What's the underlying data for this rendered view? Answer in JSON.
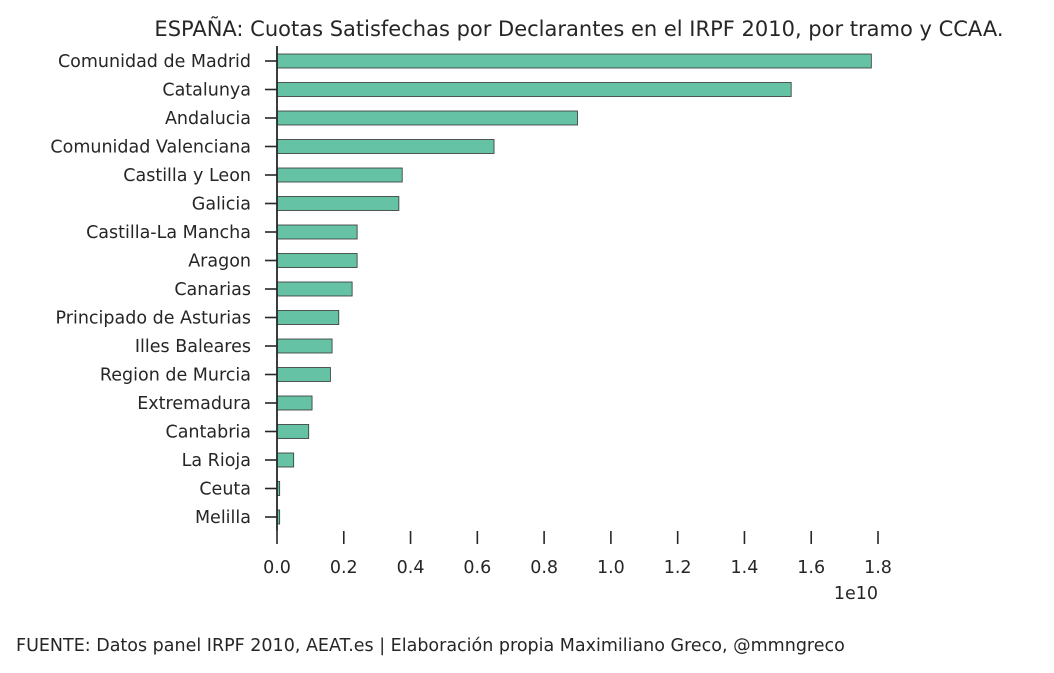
{
  "chart_data": {
    "type": "bar",
    "orientation": "horizontal",
    "title": "ESPAÑA: Cuotas Satisfechas por Declarantes en el IRPF 2010, por tramo y CCAA.",
    "xlabel": "",
    "ylabel": "",
    "x_scale_label": "1e10",
    "xlim": [
      0,
      1.8
    ],
    "x_ticks": [
      "0.0",
      "0.2",
      "0.4",
      "0.6",
      "0.8",
      "1.0",
      "1.2",
      "1.4",
      "1.6",
      "1.8"
    ],
    "x_tick_values": [
      0.0,
      0.2,
      0.4,
      0.6,
      0.8,
      1.0,
      1.2,
      1.4,
      1.6,
      1.8
    ],
    "grid": false,
    "bar_color": "#66c2a5",
    "bar_edge_color": "#333333",
    "categories": [
      "Comunidad de Madrid",
      "Catalunya",
      "Andalucia",
      "Comunidad Valenciana",
      "Castilla y Leon",
      "Galicia",
      "Castilla-La Mancha",
      "Aragon",
      "Canarias",
      "Principado de Asturias",
      "Illes Baleares",
      "Region de Murcia",
      "Extremadura",
      "Cantabria",
      "La Rioja",
      "Ceuta",
      "Melilla"
    ],
    "values": [
      1.78,
      1.54,
      0.9,
      0.65,
      0.375,
      0.365,
      0.24,
      0.24,
      0.225,
      0.185,
      0.165,
      0.16,
      0.105,
      0.095,
      0.05,
      0.008,
      0.008
    ]
  },
  "footer": {
    "source": "FUENTE: Datos panel IRPF 2010, AEAT.es | Elaboración propia Maximiliano Greco, @mmngreco"
  }
}
